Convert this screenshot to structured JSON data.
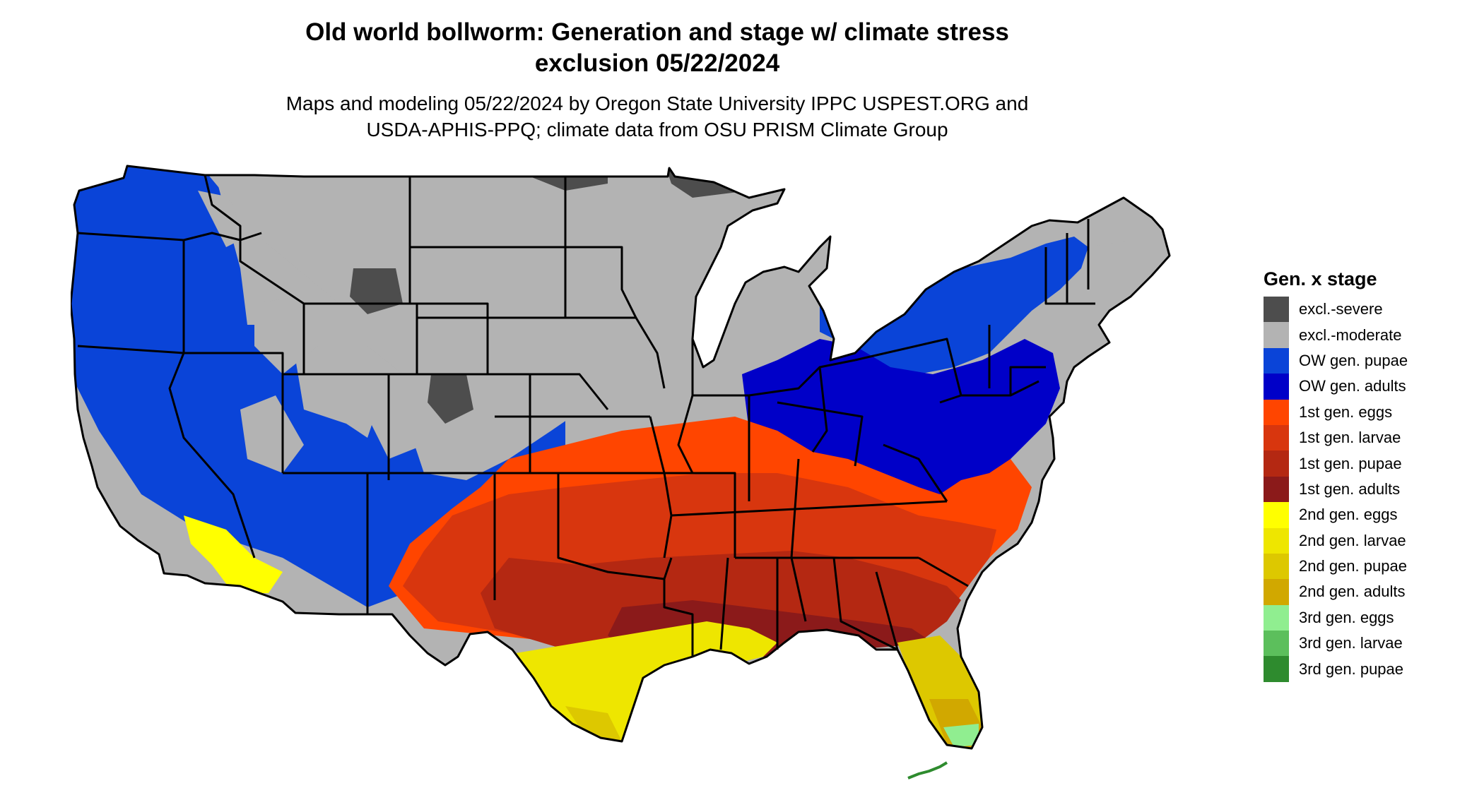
{
  "title": {
    "line1": "Old world bollworm: Generation and stage w/ climate stress",
    "line2": "exclusion 05/22/2024"
  },
  "subtitle": {
    "line1": "Maps and modeling 05/22/2024 by Oregon State University IPPC USPEST.ORG and",
    "line2": "USDA-APHIS-PPQ; climate data from OSU PRISM Climate Group"
  },
  "legend": {
    "title": "Gen. x stage",
    "items": [
      {
        "label": "excl.-severe",
        "color": "#4d4d4d"
      },
      {
        "label": "excl.-moderate",
        "color": "#b3b3b3"
      },
      {
        "label": "OW gen. pupae",
        "color": "#0a44d8"
      },
      {
        "label": "OW gen. adults",
        "color": "#0000c8"
      },
      {
        "label": "1st gen. eggs",
        "color": "#ff4500"
      },
      {
        "label": "1st gen. larvae",
        "color": "#d8360e"
      },
      {
        "label": "1st gen. pupae",
        "color": "#b42812"
      },
      {
        "label": "1st gen. adults",
        "color": "#8b1a1a"
      },
      {
        "label": "2nd gen. eggs",
        "color": "#ffff00"
      },
      {
        "label": "2nd gen. larvae",
        "color": "#eee600"
      },
      {
        "label": "2nd gen. pupae",
        "color": "#ddc800"
      },
      {
        "label": "2nd gen. adults",
        "color": "#d1a800"
      },
      {
        "label": "3rd gen. eggs",
        "color": "#90ee90"
      },
      {
        "label": "3rd gen. larvae",
        "color": "#5cbf5c"
      },
      {
        "label": "3rd gen. pupae",
        "color": "#2e8b2e"
      }
    ]
  },
  "map": {
    "region": "Contiguous United States",
    "colors": {
      "severe": "#4d4d4d",
      "moderate": "#b3b3b3",
      "ow_pupae": "#0a44d8",
      "ow_adults": "#0000c8",
      "g1_eggs": "#ff4500",
      "g1_larvae": "#d8360e",
      "g1_pupae": "#b42812",
      "g1_adults": "#8b1a1a",
      "g2_eggs": "#ffff00",
      "g2_larvae": "#eee600",
      "g2_pupae": "#ddc800",
      "g2_adults": "#d1a800",
      "g3_eggs": "#90ee90",
      "g3_larvae": "#5cbf5c",
      "g3_pupae": "#2e8b2e",
      "border": "#000000"
    }
  }
}
